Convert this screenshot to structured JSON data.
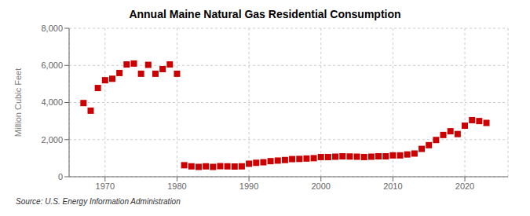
{
  "chart_data": {
    "type": "scatter",
    "title": "Annual Maine Natural Gas Residential Consumption",
    "ylabel": "Million Cubic Feet",
    "source": "Source: U.S. Energy Information Administration",
    "color": "#cc0000",
    "marker": "square",
    "grid": true,
    "xlim": [
      1965,
      2026
    ],
    "xticks": [
      1970,
      1980,
      1990,
      2000,
      2010,
      2020
    ],
    "ylim": [
      0,
      8000
    ],
    "yticks": [
      0,
      {
        "value": 2000,
        "label": "2,000"
      },
      {
        "value": 4000,
        "label": "4,000"
      },
      {
        "value": 6000,
        "label": "6,000"
      },
      {
        "value": 8000,
        "label": "8,000"
      }
    ],
    "x": [
      1967,
      1968,
      1969,
      1970,
      1971,
      1972,
      1973,
      1974,
      1975,
      1976,
      1977,
      1978,
      1979,
      1980,
      1981,
      1982,
      1983,
      1984,
      1985,
      1986,
      1987,
      1988,
      1989,
      1990,
      1991,
      1992,
      1993,
      1994,
      1995,
      1996,
      1997,
      1998,
      1999,
      2000,
      2001,
      2002,
      2003,
      2004,
      2005,
      2006,
      2007,
      2008,
      2009,
      2010,
      2011,
      2012,
      2013,
      2014,
      2015,
      2016,
      2017,
      2018,
      2019,
      2020,
      2021,
      2022,
      2023
    ],
    "values": [
      3970,
      3560,
      4780,
      5200,
      5280,
      5590,
      6050,
      6100,
      5550,
      6030,
      5550,
      5800,
      6050,
      5550,
      620,
      560,
      530,
      560,
      530,
      570,
      560,
      550,
      560,
      700,
      750,
      780,
      840,
      870,
      900,
      950,
      960,
      980,
      1000,
      1060,
      1060,
      1080,
      1100,
      1090,
      1080,
      1060,
      1080,
      1100,
      1100,
      1150,
      1150,
      1200,
      1250,
      1500,
      1700,
      1980,
      2250,
      2450,
      2300,
      2750,
      3050,
      3000,
      2900
    ]
  }
}
